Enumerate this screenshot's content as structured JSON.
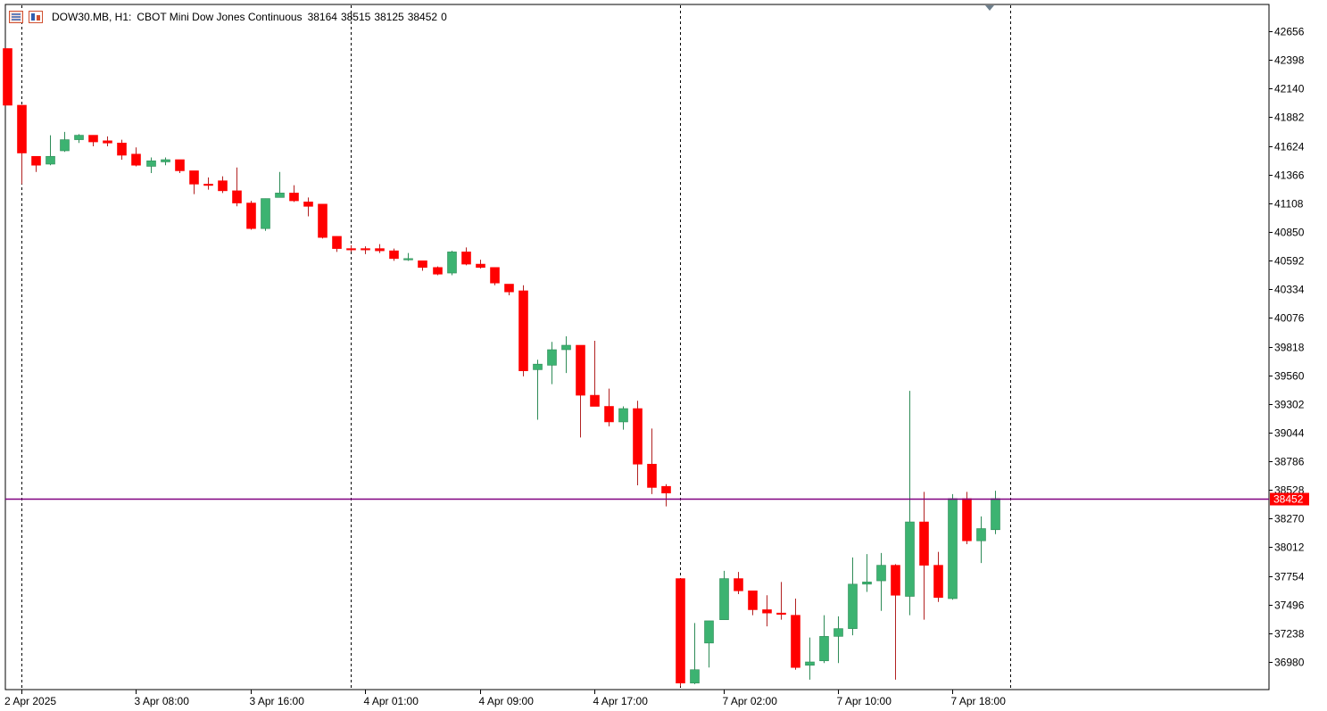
{
  "header": {
    "symbol": "DOW30.MB, H1:",
    "description": "CBOT Mini Dow Jones Continuous",
    "open": "38164",
    "high": "38515",
    "low": "38125",
    "close": "38452",
    "volume": "0"
  },
  "icons": [
    "order-list-icon",
    "one-click-trading-icon",
    "chart-shift-marker-icon"
  ],
  "colors": {
    "bull": "#3cb371",
    "bear": "#ff0000",
    "bull_wick": "#2e8b57",
    "bear_wick": "#b22222",
    "price_line": "#800080",
    "price_label_bg": "#ff0000"
  },
  "chart_data": {
    "type": "candlestick",
    "timeframe": "H1",
    "current_price": 38452,
    "current_price_label": "38452",
    "y_ticks": [
      "42656",
      "42398",
      "42140",
      "41882",
      "41624",
      "41366",
      "41108",
      "40850",
      "40592",
      "40334",
      "40076",
      "39818",
      "39560",
      "39302",
      "39044",
      "38786",
      "38528",
      "38270",
      "38012",
      "37754",
      "37496",
      "37238",
      "36980"
    ],
    "x_labels": [
      "2 Apr 2025",
      "3 Apr 08:00",
      "3 Apr 16:00",
      "4 Apr 01:00",
      "4 Apr 09:00",
      "4 Apr 17:00",
      "7 Apr 02:00",
      "7 Apr 10:00",
      "7 Apr 18:00"
    ],
    "session_separators": [
      1,
      24,
      47,
      70
    ],
    "x_label_slots": [
      1,
      9,
      17,
      25,
      33,
      41,
      50,
      58,
      66
    ],
    "candles": [
      {
        "o": 42500,
        "h": 42500,
        "l": 41990,
        "c": 41990
      },
      {
        "o": 41990,
        "h": 41990,
        "l": 41280,
        "c": 41560
      },
      {
        "o": 41530,
        "h": 41530,
        "l": 41390,
        "c": 41450
      },
      {
        "o": 41460,
        "h": 41720,
        "l": 41450,
        "c": 41530
      },
      {
        "o": 41580,
        "h": 41750,
        "l": 41570,
        "c": 41680
      },
      {
        "o": 41680,
        "h": 41730,
        "l": 41650,
        "c": 41720
      },
      {
        "o": 41720,
        "h": 41720,
        "l": 41620,
        "c": 41660
      },
      {
        "o": 41670,
        "h": 41710,
        "l": 41620,
        "c": 41650
      },
      {
        "o": 41650,
        "h": 41680,
        "l": 41500,
        "c": 41540
      },
      {
        "o": 41550,
        "h": 41610,
        "l": 41440,
        "c": 41450
      },
      {
        "o": 41440,
        "h": 41520,
        "l": 41380,
        "c": 41490
      },
      {
        "o": 41480,
        "h": 41520,
        "l": 41450,
        "c": 41500
      },
      {
        "o": 41500,
        "h": 41500,
        "l": 41380,
        "c": 41400
      },
      {
        "o": 41400,
        "h": 41400,
        "l": 41190,
        "c": 41280
      },
      {
        "o": 41280,
        "h": 41340,
        "l": 41230,
        "c": 41270
      },
      {
        "o": 41310,
        "h": 41350,
        "l": 41200,
        "c": 41220
      },
      {
        "o": 41220,
        "h": 41430,
        "l": 41080,
        "c": 41110
      },
      {
        "o": 41110,
        "h": 41130,
        "l": 40870,
        "c": 40880
      },
      {
        "o": 40880,
        "h": 41150,
        "l": 40860,
        "c": 41150
      },
      {
        "o": 41160,
        "h": 41390,
        "l": 41160,
        "c": 41200
      },
      {
        "o": 41200,
        "h": 41270,
        "l": 41120,
        "c": 41130
      },
      {
        "o": 41120,
        "h": 41160,
        "l": 40990,
        "c": 41080
      },
      {
        "o": 41100,
        "h": 41100,
        "l": 40790,
        "c": 40800
      },
      {
        "o": 40810,
        "h": 40810,
        "l": 40670,
        "c": 40700
      },
      {
        "o": 40700,
        "h": 40730,
        "l": 40670,
        "c": 40690
      },
      {
        "o": 40700,
        "h": 40720,
        "l": 40650,
        "c": 40690
      },
      {
        "o": 40700,
        "h": 40740,
        "l": 40660,
        "c": 40680
      },
      {
        "o": 40680,
        "h": 40700,
        "l": 40590,
        "c": 40610
      },
      {
        "o": 40610,
        "h": 40660,
        "l": 40590,
        "c": 40610
      },
      {
        "o": 40590,
        "h": 40590,
        "l": 40500,
        "c": 40530
      },
      {
        "o": 40530,
        "h": 40540,
        "l": 40460,
        "c": 40470
      },
      {
        "o": 40480,
        "h": 40680,
        "l": 40460,
        "c": 40670
      },
      {
        "o": 40670,
        "h": 40710,
        "l": 40550,
        "c": 40560
      },
      {
        "o": 40560,
        "h": 40600,
        "l": 40520,
        "c": 40530
      },
      {
        "o": 40530,
        "h": 40530,
        "l": 40370,
        "c": 40390
      },
      {
        "o": 40380,
        "h": 40380,
        "l": 40280,
        "c": 40310
      },
      {
        "o": 40320,
        "h": 40370,
        "l": 39550,
        "c": 39600
      },
      {
        "o": 39610,
        "h": 39700,
        "l": 39160,
        "c": 39660
      },
      {
        "o": 39650,
        "h": 39860,
        "l": 39480,
        "c": 39790
      },
      {
        "o": 39790,
        "h": 39910,
        "l": 39580,
        "c": 39830
      },
      {
        "o": 39830,
        "h": 39830,
        "l": 39000,
        "c": 39380
      },
      {
        "o": 39380,
        "h": 39870,
        "l": 39280,
        "c": 39280
      },
      {
        "o": 39280,
        "h": 39440,
        "l": 39100,
        "c": 39140
      },
      {
        "o": 39140,
        "h": 39280,
        "l": 39070,
        "c": 39260
      },
      {
        "o": 39260,
        "h": 39330,
        "l": 38570,
        "c": 38760
      },
      {
        "o": 38760,
        "h": 39080,
        "l": 38490,
        "c": 38550
      },
      {
        "o": 38560,
        "h": 38580,
        "l": 38380,
        "c": 38500
      },
      {
        "o": 37730,
        "h": 37730,
        "l": 36760,
        "c": 36790
      },
      {
        "o": 36790,
        "h": 37330,
        "l": 36780,
        "c": 36910
      },
      {
        "o": 37150,
        "h": 37350,
        "l": 36930,
        "c": 37350
      },
      {
        "o": 37360,
        "h": 37800,
        "l": 37360,
        "c": 37730
      },
      {
        "o": 37730,
        "h": 37790,
        "l": 37590,
        "c": 37620
      },
      {
        "o": 37620,
        "h": 37620,
        "l": 37400,
        "c": 37450
      },
      {
        "o": 37450,
        "h": 37580,
        "l": 37300,
        "c": 37420
      },
      {
        "o": 37420,
        "h": 37700,
        "l": 37360,
        "c": 37410
      },
      {
        "o": 37400,
        "h": 37550,
        "l": 36910,
        "c": 36930
      },
      {
        "o": 36950,
        "h": 37200,
        "l": 36820,
        "c": 36980
      },
      {
        "o": 36990,
        "h": 37400,
        "l": 36970,
        "c": 37210
      },
      {
        "o": 37210,
        "h": 37390,
        "l": 36970,
        "c": 37280
      },
      {
        "o": 37280,
        "h": 37920,
        "l": 37220,
        "c": 37680
      },
      {
        "o": 37680,
        "h": 37950,
        "l": 37610,
        "c": 37700
      },
      {
        "o": 37710,
        "h": 37960,
        "l": 37440,
        "c": 37850
      },
      {
        "o": 37850,
        "h": 37860,
        "l": 36820,
        "c": 37580
      },
      {
        "o": 37570,
        "h": 39420,
        "l": 37400,
        "c": 38240
      },
      {
        "o": 38240,
        "h": 38510,
        "l": 37360,
        "c": 37850
      },
      {
        "o": 37850,
        "h": 37970,
        "l": 37520,
        "c": 37560
      },
      {
        "o": 37550,
        "h": 38490,
        "l": 37540,
        "c": 38450
      },
      {
        "o": 38450,
        "h": 38510,
        "l": 38040,
        "c": 38070
      },
      {
        "o": 38070,
        "h": 38290,
        "l": 37870,
        "c": 38180
      },
      {
        "o": 38170,
        "h": 38520,
        "l": 38130,
        "c": 38450
      }
    ]
  }
}
